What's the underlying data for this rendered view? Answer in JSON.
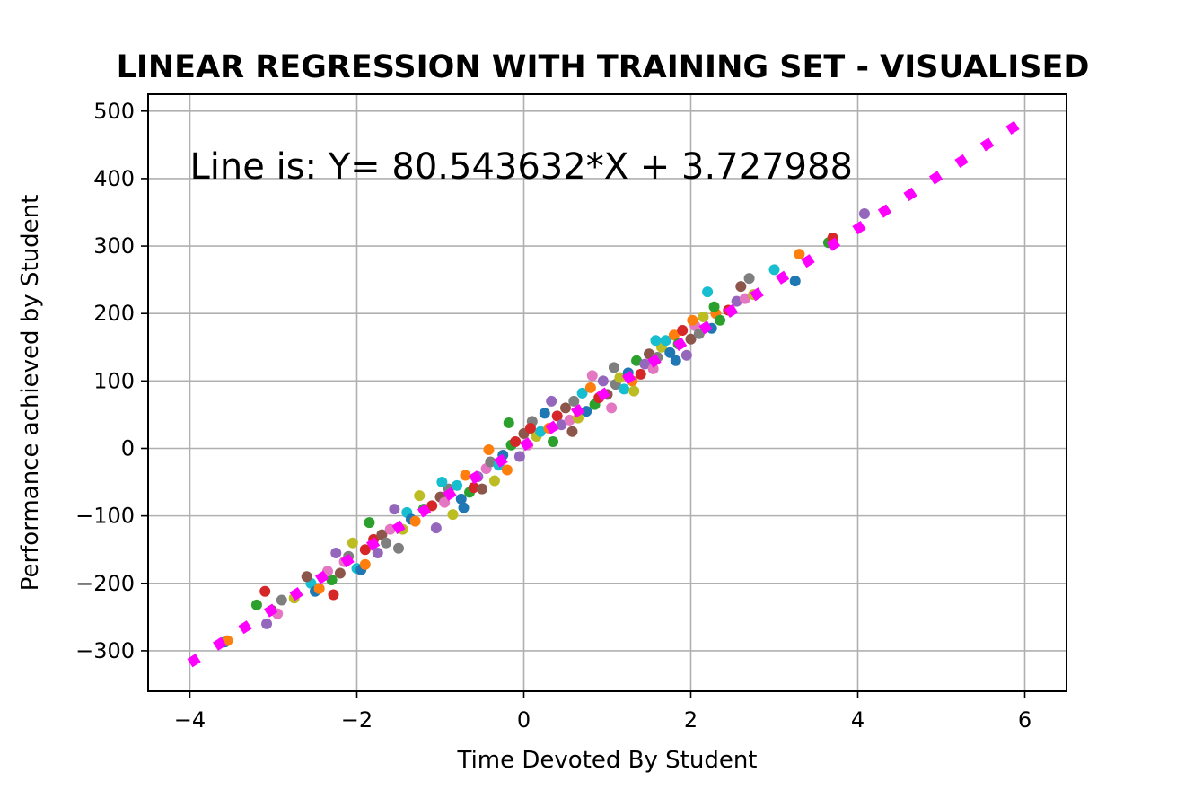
{
  "chart_data": {
    "type": "scatter",
    "title": "LINEAR REGRESSION WITH TRAINING SET - VISUALISED",
    "xlabel": "Time Devoted By Student",
    "ylabel": "Performance achieved by Student",
    "xlim": [
      -4.5,
      6.5
    ],
    "ylim": [
      -360,
      525
    ],
    "xticks": [
      -4,
      -2,
      0,
      2,
      4,
      6
    ],
    "xtick_labels": [
      "−4",
      "−2",
      "0",
      "2",
      "4",
      "6"
    ],
    "yticks": [
      -300,
      -200,
      -100,
      0,
      100,
      200,
      300,
      400,
      500
    ],
    "ytick_labels": [
      "−300",
      "−200",
      "−100",
      "0",
      "100",
      "200",
      "300",
      "400",
      "500"
    ],
    "grid": true,
    "annotation": "Line is: Y= 80.543632*X + 3.727988",
    "regression_line": {
      "slope": 80.543632,
      "intercept": 3.727988,
      "x_range": [
        -4.0,
        6.0
      ],
      "color": "#ff00ff",
      "style": "dotted"
    },
    "point_colors": [
      "#1f77b4",
      "#ff7f0e",
      "#2ca02c",
      "#d62728",
      "#9467bd",
      "#8c564b",
      "#e377c2",
      "#7f7f7f",
      "#bcbd22",
      "#17becf"
    ],
    "points": [
      [
        -3.58,
        -287
      ],
      [
        -3.55,
        -285
      ],
      [
        -3.2,
        -232
      ],
      [
        -3.1,
        -212
      ],
      [
        -3.08,
        -260
      ],
      [
        -3.02,
        -240
      ],
      [
        -2.95,
        -245
      ],
      [
        -2.9,
        -225
      ],
      [
        -2.75,
        -222
      ],
      [
        -2.55,
        -200
      ],
      [
        -2.5,
        -212
      ],
      [
        -2.45,
        -208
      ],
      [
        -2.3,
        -195
      ],
      [
        -2.28,
        -217
      ],
      [
        -2.25,
        -155
      ],
      [
        -2.2,
        -185
      ],
      [
        -2.15,
        -168
      ],
      [
        -2.1,
        -160
      ],
      [
        -2.05,
        -140
      ],
      [
        -2.0,
        -178
      ],
      [
        -1.95,
        -180
      ],
      [
        -1.9,
        -172
      ],
      [
        -1.85,
        -110
      ],
      [
        -1.8,
        -135
      ],
      [
        -1.75,
        -155
      ],
      [
        -1.7,
        -128
      ],
      [
        -1.6,
        -120
      ],
      [
        -1.5,
        -148
      ],
      [
        -1.45,
        -120
      ],
      [
        -1.4,
        -95
      ],
      [
        -1.35,
        -105
      ],
      [
        -1.3,
        -108
      ],
      [
        -1.2,
        -90
      ],
      [
        -1.1,
        -85
      ],
      [
        -1.05,
        -118
      ],
      [
        -1.0,
        -72
      ],
      [
        -0.95,
        -80
      ],
      [
        -0.9,
        -60
      ],
      [
        -0.85,
        -98
      ],
      [
        -0.8,
        -55
      ],
      [
        -0.75,
        -75
      ],
      [
        -0.7,
        -40
      ],
      [
        -0.65,
        -65
      ],
      [
        -0.6,
        -58
      ],
      [
        -0.55,
        -42
      ],
      [
        -0.5,
        -60
      ],
      [
        -0.45,
        -30
      ],
      [
        -0.4,
        -20
      ],
      [
        -0.35,
        -48
      ],
      [
        -0.3,
        -25
      ],
      [
        -0.25,
        -10
      ],
      [
        -0.2,
        -32
      ],
      [
        -0.15,
        5
      ],
      [
        -0.1,
        10
      ],
      [
        -0.05,
        -12
      ],
      [
        0.0,
        22
      ],
      [
        0.05,
        5
      ],
      [
        0.1,
        40
      ],
      [
        0.15,
        18
      ],
      [
        0.2,
        25
      ],
      [
        0.25,
        52
      ],
      [
        0.3,
        30
      ],
      [
        0.35,
        10
      ],
      [
        0.4,
        48
      ],
      [
        0.45,
        35
      ],
      [
        0.5,
        60
      ],
      [
        0.55,
        42
      ],
      [
        0.6,
        70
      ],
      [
        0.65,
        45
      ],
      [
        0.7,
        82
      ],
      [
        0.75,
        55
      ],
      [
        0.8,
        90
      ],
      [
        0.85,
        65
      ],
      [
        0.9,
        75
      ],
      [
        0.95,
        100
      ],
      [
        1.0,
        80
      ],
      [
        1.05,
        60
      ],
      [
        1.1,
        95
      ],
      [
        1.15,
        105
      ],
      [
        1.2,
        88
      ],
      [
        1.25,
        112
      ],
      [
        1.3,
        100
      ],
      [
        1.35,
        130
      ],
      [
        1.4,
        110
      ],
      [
        1.45,
        125
      ],
      [
        1.5,
        140
      ],
      [
        1.55,
        118
      ],
      [
        1.6,
        135
      ],
      [
        1.65,
        150
      ],
      [
        1.7,
        160
      ],
      [
        1.75,
        142
      ],
      [
        1.8,
        168
      ],
      [
        1.85,
        155
      ],
      [
        1.9,
        175
      ],
      [
        1.95,
        138
      ],
      [
        2.0,
        162
      ],
      [
        2.05,
        182
      ],
      [
        2.1,
        170
      ],
      [
        2.15,
        195
      ],
      [
        2.2,
        232
      ],
      [
        2.25,
        178
      ],
      [
        2.3,
        200
      ],
      [
        2.35,
        190
      ],
      [
        2.45,
        205
      ],
      [
        2.55,
        218
      ],
      [
        2.6,
        240
      ],
      [
        2.65,
        222
      ],
      [
        2.7,
        252
      ],
      [
        2.75,
        228
      ],
      [
        3.0,
        265
      ],
      [
        3.25,
        248
      ],
      [
        3.3,
        288
      ],
      [
        3.65,
        305
      ],
      [
        3.7,
        312
      ],
      [
        4.08,
        348
      ],
      [
        -2.6,
        -190
      ],
      [
        -2.35,
        -182
      ],
      [
        -1.65,
        -140
      ],
      [
        -1.25,
        -70
      ],
      [
        -0.98,
        -50
      ],
      [
        -0.72,
        -88
      ],
      [
        -0.42,
        -2
      ],
      [
        -0.18,
        38
      ],
      [
        0.08,
        30
      ],
      [
        0.33,
        70
      ],
      [
        0.58,
        25
      ],
      [
        0.82,
        108
      ],
      [
        1.08,
        120
      ],
      [
        1.32,
        85
      ],
      [
        1.58,
        160
      ],
      [
        1.82,
        130
      ],
      [
        2.02,
        190
      ],
      [
        2.28,
        210
      ],
      [
        -1.9,
        -150
      ],
      [
        -1.55,
        -90
      ]
    ]
  }
}
